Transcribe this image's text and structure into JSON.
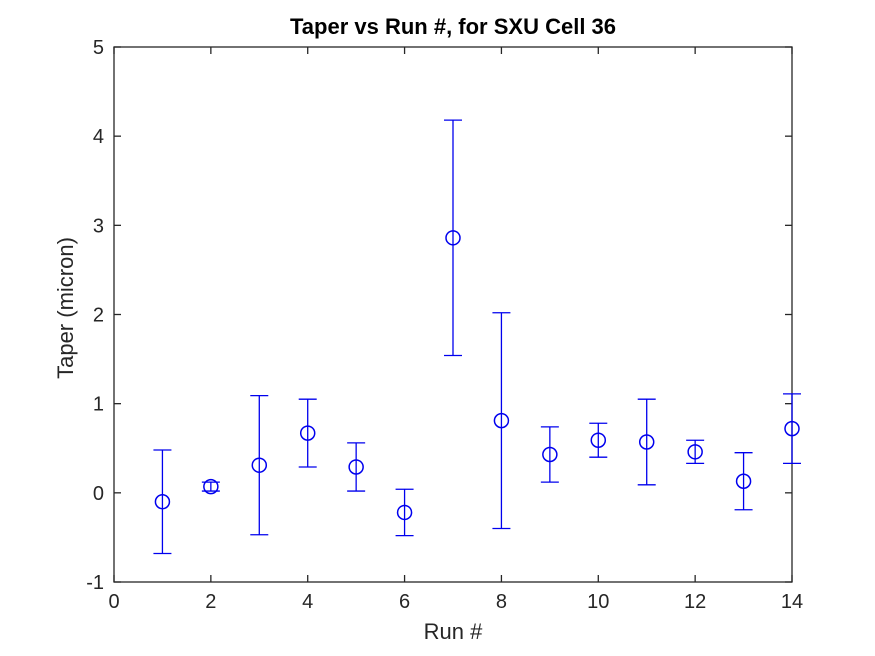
{
  "figure": {
    "background": "#ffffff"
  },
  "chart_data": {
    "type": "scatter",
    "subtype": "errorbar",
    "title": "Taper vs Run #, for SXU Cell 36",
    "xlabel": "Run #",
    "ylabel": "Taper (micron)",
    "xlim": [
      0,
      14
    ],
    "ylim": [
      -1,
      5
    ],
    "x_ticks": [
      0,
      2,
      4,
      6,
      8,
      10,
      12,
      14
    ],
    "y_ticks": [
      -1,
      0,
      1,
      2,
      3,
      4,
      5
    ],
    "grid": false,
    "box": true,
    "tick_direction": "in",
    "axis_color": "#262626",
    "marker": "open-circle",
    "series": [
      {
        "name": "Taper",
        "color": "#0000ee",
        "x": [
          1,
          2,
          3,
          4,
          5,
          6,
          7,
          8,
          9,
          10,
          11,
          12,
          13,
          14
        ],
        "y": [
          -0.1,
          0.07,
          0.31,
          0.67,
          0.29,
          -0.22,
          2.86,
          0.81,
          0.43,
          0.59,
          0.57,
          0.46,
          0.13,
          0.72
        ],
        "y_lower": [
          -0.68,
          0.02,
          -0.47,
          0.29,
          0.02,
          -0.48,
          1.54,
          -0.4,
          0.12,
          0.4,
          0.09,
          0.33,
          -0.19,
          0.33
        ],
        "y_upper": [
          0.48,
          0.12,
          1.09,
          1.05,
          0.56,
          0.04,
          4.18,
          2.02,
          0.74,
          0.78,
          1.05,
          0.59,
          0.45,
          1.11
        ]
      }
    ]
  }
}
